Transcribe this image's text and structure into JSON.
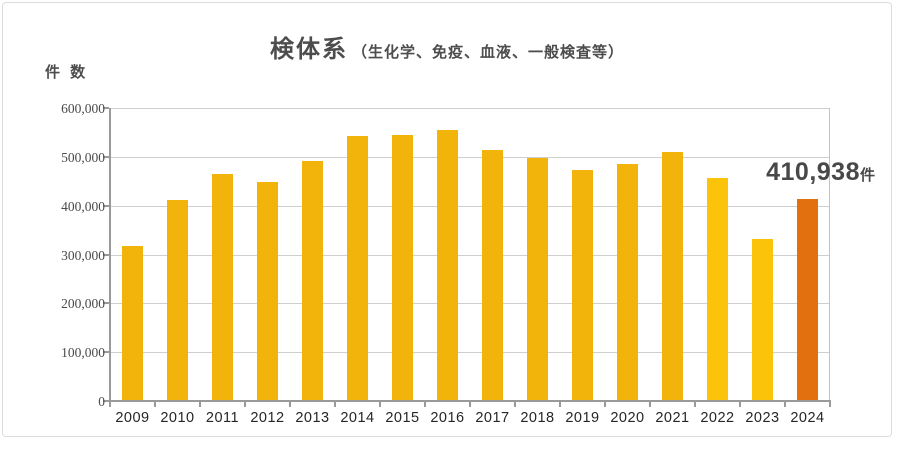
{
  "title": {
    "main": "検体系",
    "sub": "（生化学、免疫、血液、一般検査等）"
  },
  "annotation": {
    "value": "410,938",
    "unit": "件"
  },
  "chart_data": {
    "type": "bar",
    "title": "検体系（生化学、免疫、血液、一般検査等）",
    "ylabel": "件 数",
    "xlabel": "",
    "categories": [
      "2009",
      "2010",
      "2011",
      "2012",
      "2013",
      "2014",
      "2015",
      "2016",
      "2017",
      "2018",
      "2019",
      "2020",
      "2021",
      "2022",
      "2023",
      "2024"
    ],
    "values": [
      315000,
      410000,
      462000,
      446000,
      489000,
      540000,
      543000,
      552000,
      513000,
      495000,
      472000,
      483000,
      508000,
      455000,
      330000,
      410938
    ],
    "ylim": [
      0,
      600000
    ],
    "grid_step": 100000,
    "yticks": [
      "0",
      "100,000",
      "200,000",
      "300,000",
      "400,000",
      "500,000",
      "600,000"
    ],
    "grid": true,
    "legend": false,
    "bar_colors": [
      "#F2B30B",
      "#F2B30B",
      "#F2B30B",
      "#F2B30B",
      "#F2B30B",
      "#F2B30B",
      "#F2B30B",
      "#F2B30B",
      "#F2B30B",
      "#F2B30B",
      "#F2B30B",
      "#F2B30B",
      "#F2B30B",
      "#FCC30B",
      "#FCC30B",
      "#E2700E"
    ],
    "data_label": {
      "text": "410,938件",
      "target_category": "2024"
    },
    "colors": {
      "bar_default": "#F2B30B",
      "bar_recent": "#FCC30B",
      "bar_highlight": "#E2700E",
      "gridline": "#CFCFCF",
      "axis": "#9A9A9A",
      "title_text": "#4D4D4D",
      "annotation_text": "#484848"
    }
  }
}
